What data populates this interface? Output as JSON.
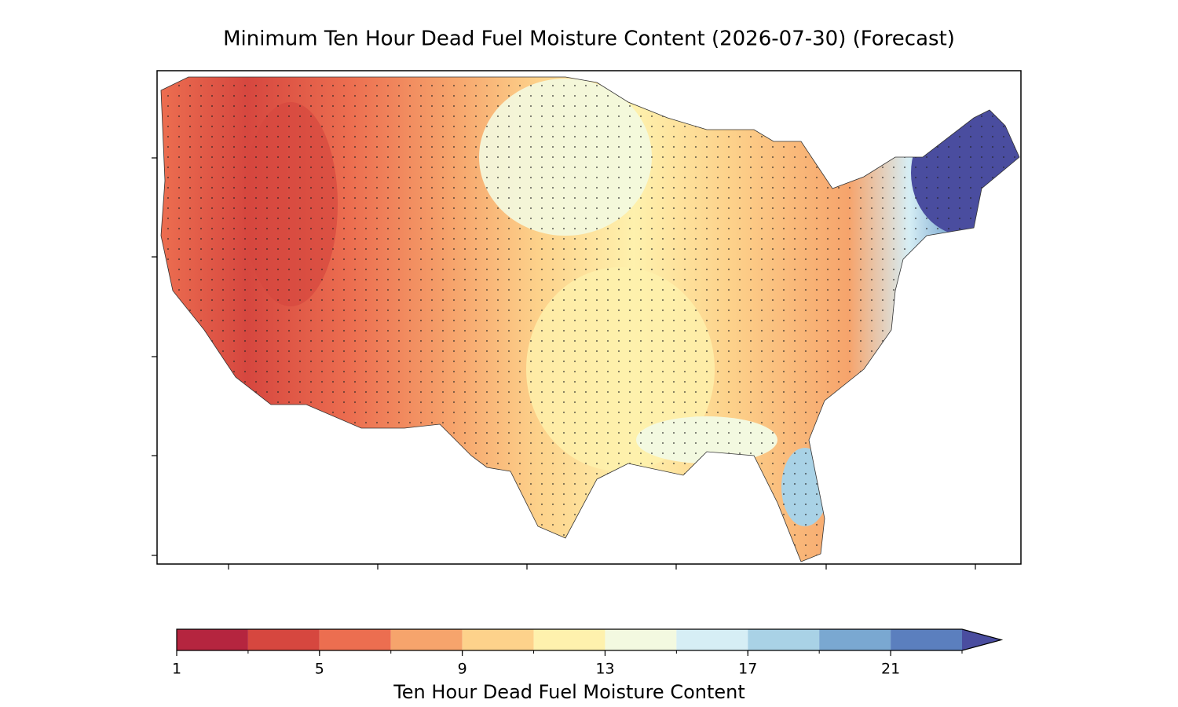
{
  "title": "Minimum Ten Hour Dead Fuel Moisture Content (2026-07-30) (Forecast)",
  "colorbar": {
    "label": "Ten Hour Dead Fuel Moisture Content",
    "levels": [
      1,
      3,
      5,
      7,
      9,
      11,
      13,
      15,
      17,
      19,
      21,
      23
    ],
    "colors": [
      "#b5253f",
      "#d6473f",
      "#ec6e50",
      "#f6a46c",
      "#fdd28b",
      "#fef1ad",
      "#f3f9e0",
      "#d6eef5",
      "#a9d2e6",
      "#7aa8d1",
      "#5b7fbe"
    ],
    "extend_color": "#4a4d9f",
    "ticks": [
      1,
      5,
      9,
      13,
      17,
      21
    ]
  }
}
